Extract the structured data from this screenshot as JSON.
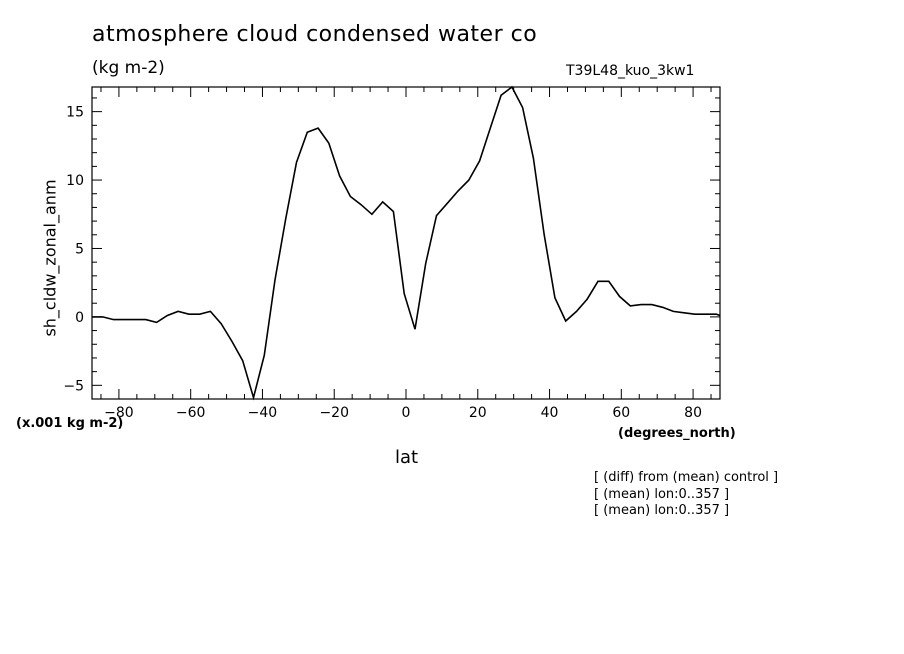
{
  "chart_data": {
    "type": "line",
    "title": "atmosphere cloud condensed water co",
    "units": "(kg m-2)",
    "run_label": "T39L48_kuo_3kw1",
    "ylabel": "sh_cldw_zonal_anm",
    "xlabel": "lat",
    "x_units": "(degrees_north)",
    "y_scale_note": "(x.001 kg m-2)",
    "xlim": [
      -87.5,
      87.5
    ],
    "ylim": [
      -6,
      16.8
    ],
    "x_ticks": [
      -80,
      -60,
      -40,
      -20,
      0,
      20,
      40,
      60,
      80
    ],
    "x_tick_labels": [
      "−80",
      "−60",
      "−40",
      "−20",
      "0",
      "20",
      "40",
      "60",
      "80"
    ],
    "y_ticks": [
      -5,
      0,
      5,
      10,
      15
    ],
    "y_tick_labels": [
      "−5",
      "0",
      "5",
      "10",
      "15"
    ],
    "grid": false,
    "series": [
      {
        "x": [
          -87.5,
          -84.5,
          -81.5,
          -78.5,
          -75.5,
          -72.5,
          -69.5,
          -66.5,
          -63.5,
          -60.5,
          -57.5,
          -54.5,
          -51.5,
          -48.5,
          -45.5,
          -42.5,
          -39.5,
          -36.5,
          -33.5,
          -30.5,
          -27.5,
          -24.5,
          -21.5,
          -18.5,
          -15.5,
          -12.5,
          -9.5,
          -6.5,
          -3.5,
          -0.5,
          2.5,
          5.5,
          8.5,
          11.5,
          14.5,
          17.5,
          20.5,
          23.5,
          26.5,
          29.5,
          32.5,
          35.5,
          38.5,
          41.5,
          44.5,
          47.5,
          50.5,
          53.5,
          56.5,
          59.5,
          62.5,
          65.5,
          68.5,
          71.5,
          74.5,
          77.5,
          80.5,
          83.5,
          86.5,
          87.5
        ],
        "y": [
          0.0,
          0.0,
          -0.2,
          -0.2,
          -0.2,
          -0.2,
          -0.4,
          0.1,
          0.4,
          0.2,
          0.2,
          0.4,
          -0.5,
          -1.8,
          -3.2,
          -5.9,
          -2.8,
          2.7,
          7.2,
          11.3,
          13.5,
          13.8,
          12.7,
          10.3,
          8.8,
          8.2,
          7.5,
          8.4,
          7.7,
          1.7,
          -0.9,
          3.9,
          7.4,
          8.3,
          9.2,
          10.0,
          11.4,
          13.8,
          16.2,
          16.8,
          15.3,
          11.6,
          6.0,
          1.4,
          -0.3,
          0.4,
          1.3,
          2.6,
          2.6,
          1.5,
          0.8,
          0.9,
          0.9,
          0.7,
          0.4,
          0.3,
          0.2,
          0.2,
          0.2,
          0.1
        ]
      }
    ]
  },
  "notes": [
    "[ (diff) from (mean) control ]",
    "[ (mean) lon:0..357 ]",
    "[ (mean) lon:0..357 ]"
  ]
}
